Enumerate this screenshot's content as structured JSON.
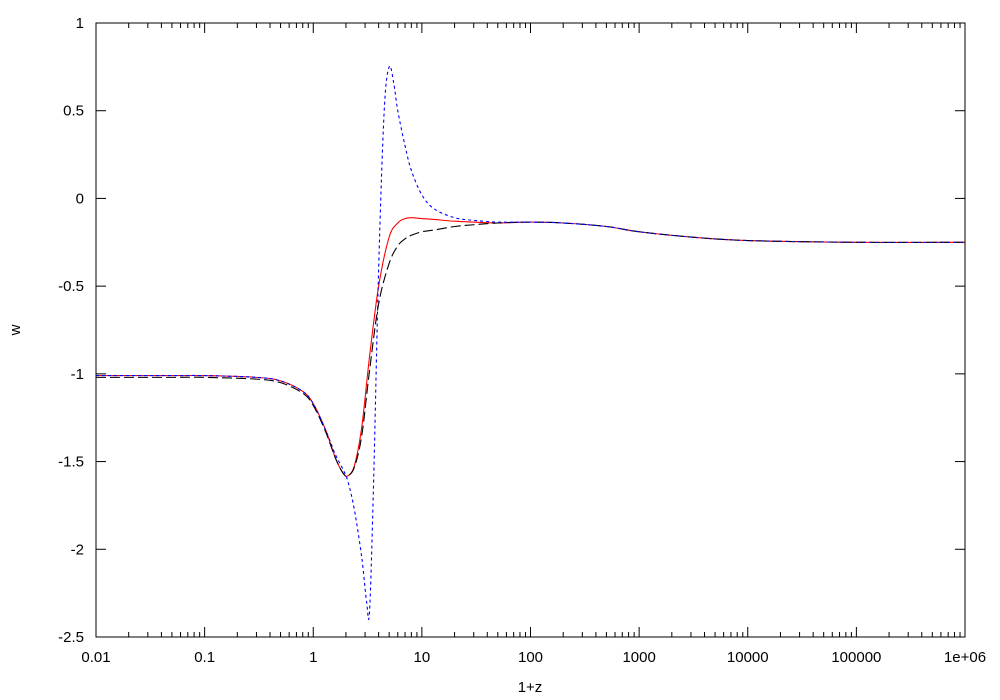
{
  "chart_data": {
    "type": "line",
    "title": "",
    "xlabel": "1+z",
    "ylabel": "w",
    "xscale": "log",
    "xlim": [
      0.01,
      1000000
    ],
    "ylim": [
      -2.5,
      1
    ],
    "grid": false,
    "legend": "none",
    "x_ticks": [
      {
        "value": 0.01,
        "label": "0.01"
      },
      {
        "value": 0.1,
        "label": "0.1"
      },
      {
        "value": 1,
        "label": "1"
      },
      {
        "value": 10,
        "label": "10"
      },
      {
        "value": 100,
        "label": "100"
      },
      {
        "value": 1000,
        "label": "1000"
      },
      {
        "value": 10000,
        "label": "10000"
      },
      {
        "value": 100000,
        "label": "100000"
      },
      {
        "value": 1000000,
        "label": "1e+06"
      }
    ],
    "y_ticks": [
      {
        "value": 1,
        "label": "1"
      },
      {
        "value": 0.5,
        "label": "0.5"
      },
      {
        "value": 0,
        "label": "0"
      },
      {
        "value": -0.5,
        "label": "-0.5"
      },
      {
        "value": -1,
        "label": "-1"
      },
      {
        "value": -1.5,
        "label": "-1.5"
      },
      {
        "value": -2,
        "label": "-2"
      },
      {
        "value": -2.5,
        "label": "-2.5"
      }
    ],
    "series": [
      {
        "color": "#ff0000",
        "dash": "solid",
        "x": [
          0.01,
          0.05,
          0.1,
          0.3,
          0.5,
          0.8,
          1.0,
          1.3,
          1.6,
          1.9,
          2.1,
          2.4,
          2.8,
          3.3,
          4.0,
          5.0,
          6.0,
          7.0,
          8.0,
          10,
          13,
          20,
          30,
          50,
          100,
          200,
          500,
          1000,
          3000,
          10000,
          100000,
          1000000
        ],
        "y": [
          -1.01,
          -1.01,
          -1.01,
          -1.02,
          -1.04,
          -1.1,
          -1.17,
          -1.32,
          -1.48,
          -1.57,
          -1.58,
          -1.52,
          -1.3,
          -0.9,
          -0.5,
          -0.22,
          -0.14,
          -0.115,
          -0.11,
          -0.115,
          -0.12,
          -0.13,
          -0.135,
          -0.14,
          -0.135,
          -0.14,
          -0.16,
          -0.19,
          -0.22,
          -0.24,
          -0.25,
          -0.25
        ]
      },
      {
        "color": "#000000",
        "dash": "long-dash",
        "x": [
          0.01,
          0.05,
          0.1,
          0.3,
          0.5,
          0.8,
          1.0,
          1.3,
          1.6,
          1.9,
          2.1,
          2.4,
          2.8,
          3.3,
          4.0,
          5.0,
          6.0,
          7.0,
          8.0,
          10,
          13,
          20,
          30,
          50,
          100,
          200,
          500,
          1000,
          3000,
          10000,
          100000,
          1000000
        ],
        "y": [
          -1.02,
          -1.02,
          -1.02,
          -1.03,
          -1.05,
          -1.11,
          -1.18,
          -1.33,
          -1.48,
          -1.57,
          -1.58,
          -1.53,
          -1.35,
          -0.98,
          -0.6,
          -0.37,
          -0.27,
          -0.23,
          -0.21,
          -0.19,
          -0.18,
          -0.16,
          -0.15,
          -0.14,
          -0.135,
          -0.14,
          -0.16,
          -0.19,
          -0.22,
          -0.24,
          -0.25,
          -0.25
        ]
      },
      {
        "color": "#0000ff",
        "dash": "short-dash",
        "x": [
          0.01,
          0.05,
          0.1,
          0.3,
          0.5,
          0.8,
          1.0,
          1.3,
          1.6,
          1.9,
          2.1,
          2.4,
          2.8,
          3.1,
          3.3,
          3.6,
          4.0,
          4.5,
          5.0,
          5.5,
          6.0,
          7.0,
          8.0,
          10,
          13,
          20,
          30,
          50,
          100,
          200,
          500,
          1000,
          3000,
          10000,
          100000,
          1000000
        ],
        "y": [
          -1.01,
          -1.01,
          -1.01,
          -1.02,
          -1.04,
          -1.1,
          -1.17,
          -1.32,
          -1.46,
          -1.55,
          -1.62,
          -1.78,
          -2.05,
          -2.3,
          -2.35,
          -1.6,
          -0.4,
          0.5,
          0.75,
          0.66,
          0.5,
          0.3,
          0.16,
          0.02,
          -0.06,
          -0.11,
          -0.125,
          -0.135,
          -0.135,
          -0.14,
          -0.16,
          -0.19,
          -0.22,
          -0.24,
          -0.25,
          -0.25
        ]
      }
    ]
  }
}
